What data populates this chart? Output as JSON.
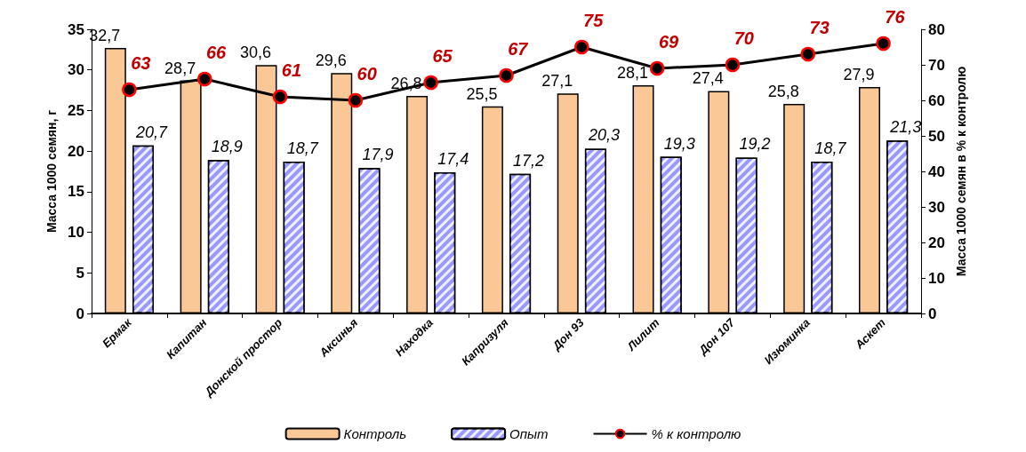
{
  "chart_data": {
    "type": "bar",
    "categories": [
      "Ермак",
      "Капитан",
      "Донской простор",
      "Аксинья",
      "Находка",
      "Капризуля",
      "Дон 93",
      "Лилит",
      "Дон 107",
      "Изюминка",
      "Аскет"
    ],
    "ylabel": "Масса 1000 семян, г",
    "y2label": "Масса 1000 семян в % к контролю",
    "ylim": [
      0,
      35
    ],
    "yticks": [
      0,
      5,
      10,
      15,
      20,
      25,
      30,
      35
    ],
    "y2lim": [
      0,
      80
    ],
    "y2ticks": [
      0,
      10,
      20,
      30,
      40,
      50,
      60,
      70,
      80
    ],
    "grid": false,
    "legend": "bottom",
    "marker": "circle",
    "series": [
      {
        "name": "Контроль",
        "color": "#fac896",
        "values": [
          32.7,
          28.7,
          30.6,
          29.6,
          26.8,
          25.5,
          27.1,
          28.1,
          27.4,
          25.8,
          27.9
        ],
        "value_labels": [
          "32,7",
          "28,7",
          "30,6",
          "29,6",
          "26,8",
          "25,5",
          "27,1",
          "28,1",
          "27,4",
          "25,8",
          "27,9"
        ]
      },
      {
        "name": "Опыт",
        "color": "#9999ff",
        "values": [
          20.7,
          18.9,
          18.7,
          17.9,
          17.4,
          17.2,
          20.3,
          19.3,
          19.2,
          18.7,
          21.3
        ],
        "value_labels": [
          "20,7",
          "18,9",
          "18,7",
          "17,9",
          "17,4",
          "17,2",
          "20,3",
          "19,3",
          "19,2",
          "18,7",
          "21,3"
        ]
      },
      {
        "name": "% к контролю",
        "type": "line",
        "axis": "y2",
        "color": "#000000",
        "values": [
          63,
          66,
          61,
          60,
          65,
          67,
          75,
          69,
          70,
          73,
          76
        ],
        "value_labels": [
          "63",
          "66",
          "61",
          "60",
          "65",
          "67",
          "75",
          "69",
          "70",
          "73",
          "76"
        ]
      }
    ]
  }
}
